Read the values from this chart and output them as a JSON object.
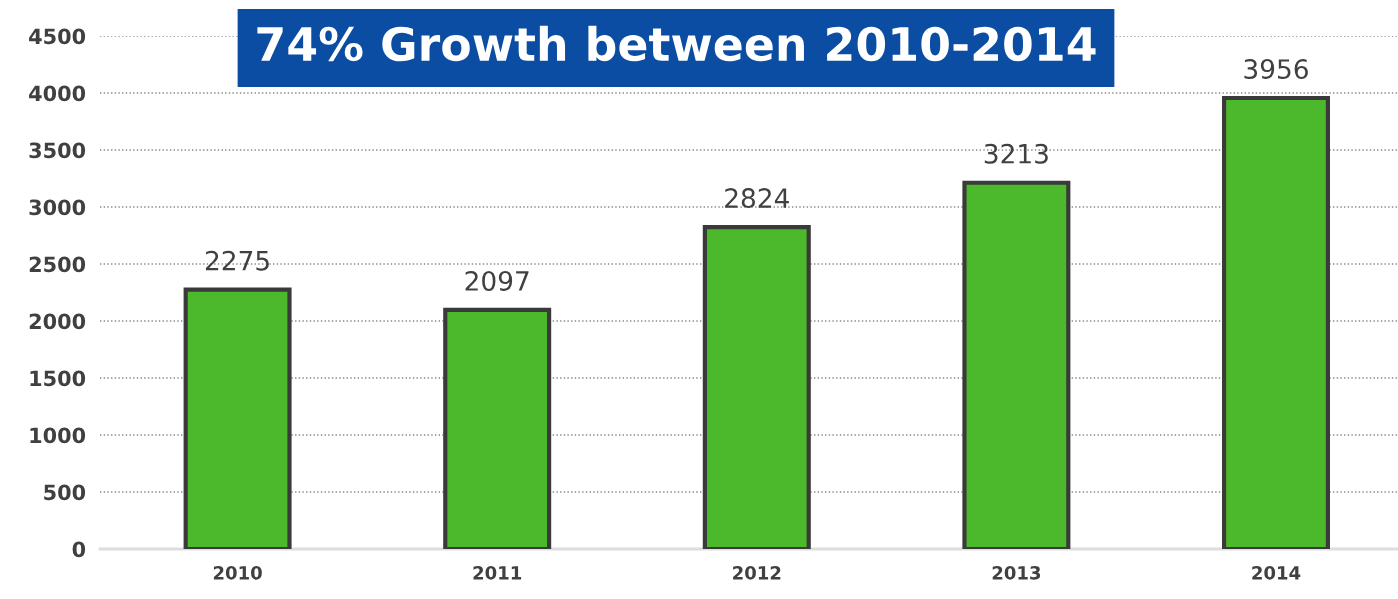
{
  "chart_data": {
    "type": "bar",
    "title": "74% Growth between 2010-2014",
    "categories": [
      "2010",
      "2011",
      "2012",
      "2013",
      "2014"
    ],
    "values": [
      2275,
      2097,
      2824,
      3213,
      3956
    ],
    "color": "#4cb82c",
    "ylim": [
      0,
      4500
    ],
    "yticks": [
      0,
      500,
      1000,
      1500,
      2000,
      2500,
      3000,
      3500,
      4000,
      4500
    ],
    "grid": "y",
    "data_labels": true
  }
}
